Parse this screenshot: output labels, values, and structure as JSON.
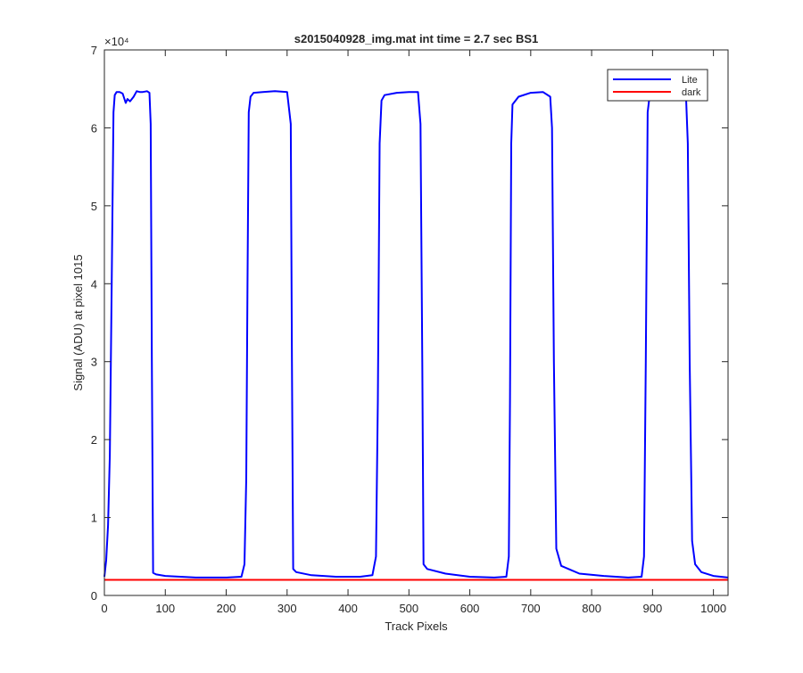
{
  "chart_data": {
    "type": "line",
    "title": "s2015040928_img.mat int time = 2.7 sec   BS1",
    "xlabel": "Track Pixels",
    "ylabel": "Signal (ADU) at pixel 1015",
    "xlim": [
      0,
      1024
    ],
    "ylim": [
      0,
      70000
    ],
    "x_ticks": [
      0,
      100,
      200,
      300,
      400,
      500,
      600,
      700,
      800,
      900,
      1000
    ],
    "x_tick_labels": [
      "0",
      "100",
      "200",
      "300",
      "400",
      "500",
      "600",
      "700",
      "800",
      "900",
      "1000"
    ],
    "y_ticks": [
      0,
      10000,
      20000,
      30000,
      40000,
      50000,
      60000,
      70000
    ],
    "y_tick_labels": [
      "0",
      "1",
      "2",
      "3",
      "4",
      "5",
      "6",
      "7"
    ],
    "y_exponent_label": "×10⁴",
    "grid": false,
    "legend_position": "top-right",
    "series": [
      {
        "name": "Lite",
        "color": "#0000ff",
        "x": [
          0,
          3,
          6,
          9,
          12,
          15,
          17,
          20,
          25,
          30,
          35,
          38,
          42,
          48,
          53,
          58,
          63,
          70,
          74,
          76,
          78,
          80,
          85,
          100,
          150,
          200,
          225,
          230,
          233,
          235,
          237,
          240,
          245,
          260,
          280,
          300,
          306,
          308,
          310,
          315,
          340,
          380,
          420,
          440,
          446,
          449,
          452,
          455,
          460,
          480,
          500,
          515,
          519,
          522,
          524,
          530,
          560,
          600,
          640,
          660,
          664,
          666,
          668,
          670,
          680,
          700,
          720,
          732,
          735,
          738,
          742,
          750,
          780,
          820,
          860,
          882,
          886,
          889,
          892,
          896,
          910,
          930,
          950,
          955,
          958,
          961,
          965,
          970,
          980,
          1000,
          1024
        ],
        "y": [
          2400,
          4500,
          9000,
          18000,
          40000,
          62000,
          64200,
          64600,
          64600,
          64400,
          63200,
          63700,
          63400,
          64000,
          64700,
          64600,
          64600,
          64700,
          64500,
          60500,
          30000,
          2900,
          2700,
          2500,
          2300,
          2300,
          2400,
          4000,
          15000,
          40000,
          62000,
          64000,
          64500,
          64600,
          64700,
          64600,
          60500,
          30000,
          3400,
          3000,
          2600,
          2400,
          2400,
          2600,
          5000,
          25000,
          58000,
          63500,
          64200,
          64500,
          64600,
          64600,
          60500,
          30000,
          4000,
          3400,
          2800,
          2400,
          2300,
          2400,
          5000,
          25000,
          58000,
          63000,
          64000,
          64500,
          64600,
          64000,
          60000,
          30000,
          6000,
          3800,
          2800,
          2500,
          2300,
          2400,
          5000,
          30000,
          62000,
          64600,
          64600,
          64600,
          64600,
          64000,
          58000,
          30000,
          7000,
          4000,
          3000,
          2500,
          2300
        ]
      },
      {
        "name": "dark",
        "color": "#ff0000",
        "x": [
          0,
          1024
        ],
        "y": [
          2000,
          2000
        ]
      }
    ]
  }
}
